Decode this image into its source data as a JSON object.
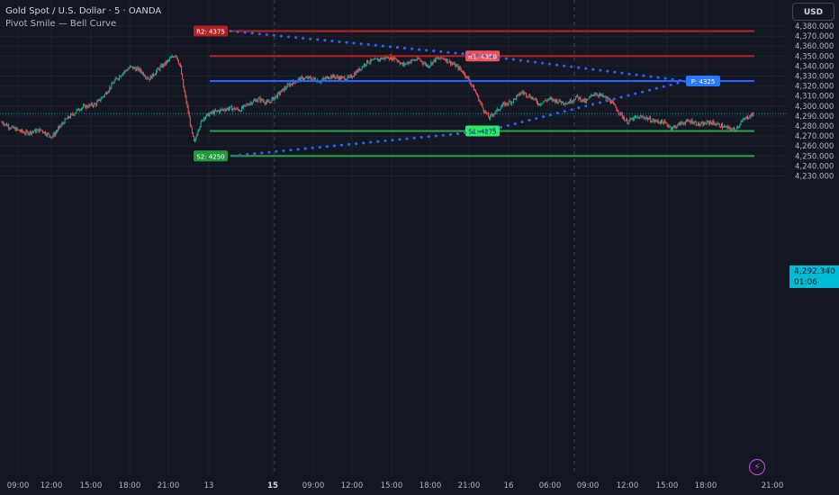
{
  "legend": {
    "title": "Gold Spot / U.S. Dollar · 5 · OANDA",
    "indicator": "Pivot Smile — Bell Curve"
  },
  "currency_button": "USD",
  "last_price": {
    "value": "4,292.340",
    "countdown": "01:06"
  },
  "alert_icon": "lightning-icon",
  "colors": {
    "background": "#131722",
    "up": "#26a69a",
    "down": "#ef5350",
    "resistance_line": "#b22222",
    "pivot_line": "#2962ff",
    "support_line": "#2e9c47",
    "smile_dots": "#2962ff",
    "price_tag": "#00bcd4"
  },
  "chart_data": {
    "type": "candlestick",
    "symbol": "XAUUSD",
    "timeframe": "5",
    "ylim": [
      4222,
      4388
    ],
    "yticks": [
      "4,230.000",
      "4,240.000",
      "4,250.000",
      "4,260.000",
      "4,270.000",
      "4,280.000",
      "4,290.000",
      "4,300.000",
      "4,310.000",
      "4,320.000",
      "4,330.000",
      "4,340.000",
      "4,350.000",
      "4,360.000",
      "4,370.000",
      "4,380.000"
    ],
    "x_ticks": [
      "09:00",
      "12:00",
      "15:00",
      "18:00",
      "21:00",
      "13",
      "15",
      "09:00",
      "12:00",
      "15:00",
      "18:00",
      "21:00",
      "16",
      "06:00",
      "09:00",
      "12:00",
      "15:00",
      "18:00",
      "21:00"
    ],
    "levels": [
      {
        "label": "R2: 4375",
        "value": 4375
      },
      {
        "label": "R1: 4350",
        "value": 4350
      },
      {
        "label": "P: 4325",
        "value": 4325
      },
      {
        "label": "S1: 4275",
        "value": 4275
      },
      {
        "label": "S2: 4250",
        "value": 4250
      }
    ],
    "price_path": [
      [
        0,
        4284
      ],
      [
        0.5,
        4279
      ],
      [
        1.5,
        4273
      ],
      [
        2.5,
        4276
      ],
      [
        3.2,
        4269
      ],
      [
        4,
        4285
      ],
      [
        5,
        4298
      ],
      [
        6,
        4302
      ],
      [
        6.6,
        4312
      ],
      [
        7.2,
        4325
      ],
      [
        7.7,
        4333
      ],
      [
        8.2,
        4339
      ],
      [
        8.8,
        4336
      ],
      [
        9.4,
        4327
      ],
      [
        10,
        4337
      ],
      [
        10.6,
        4345
      ],
      [
        11.1,
        4352
      ],
      [
        11.4,
        4339
      ],
      [
        11.6,
        4318
      ],
      [
        11.9,
        4294
      ],
      [
        12.1,
        4276
      ],
      [
        12.3,
        4262
      ],
      [
        12.5,
        4276
      ],
      [
        12.9,
        4289
      ],
      [
        13.4,
        4293
      ],
      [
        14,
        4296
      ],
      [
        14.6,
        4298
      ],
      [
        15.2,
        4296
      ],
      [
        15.8,
        4303
      ],
      [
        16.4,
        4307
      ],
      [
        17,
        4303
      ],
      [
        17.6,
        4311
      ],
      [
        18.3,
        4321
      ],
      [
        19,
        4327
      ],
      [
        19.7,
        4328
      ],
      [
        20.3,
        4325
      ],
      [
        21,
        4330
      ],
      [
        21.6,
        4328
      ],
      [
        22.2,
        4328
      ],
      [
        22.7,
        4335
      ],
      [
        23.3,
        4344
      ],
      [
        23.9,
        4346
      ],
      [
        24.6,
        4349
      ],
      [
        25.1,
        4348
      ],
      [
        25.6,
        4341
      ],
      [
        26.1,
        4345
      ],
      [
        26.6,
        4347
      ],
      [
        27.2,
        4340
      ],
      [
        27.7,
        4347
      ],
      [
        28.2,
        4348
      ],
      [
        28.7,
        4343
      ],
      [
        29.1,
        4339
      ],
      [
        29.5,
        4333
      ],
      [
        29.9,
        4324
      ],
      [
        30.3,
        4312
      ],
      [
        30.7,
        4298
      ],
      [
        31.1,
        4288
      ],
      [
        31.5,
        4294
      ],
      [
        32,
        4301
      ],
      [
        32.6,
        4305
      ],
      [
        33.2,
        4314
      ],
      [
        33.8,
        4309
      ],
      [
        34.3,
        4302
      ],
      [
        34.9,
        4307
      ],
      [
        35.5,
        4305
      ],
      [
        36.1,
        4303
      ],
      [
        36.7,
        4309
      ],
      [
        37.3,
        4304
      ],
      [
        37.8,
        4313
      ],
      [
        38.3,
        4310
      ],
      [
        38.8,
        4306
      ],
      [
        39.2,
        4298
      ],
      [
        39.5,
        4292
      ],
      [
        39.9,
        4284
      ],
      [
        40.4,
        4288
      ],
      [
        41,
        4289
      ],
      [
        41.6,
        4285
      ],
      [
        42.2,
        4284
      ],
      [
        42.8,
        4278
      ],
      [
        43.4,
        4283
      ],
      [
        44,
        4285
      ],
      [
        44.6,
        4281
      ],
      [
        45.2,
        4284
      ],
      [
        45.8,
        4281
      ],
      [
        46.3,
        4278
      ],
      [
        46.8,
        4276
      ],
      [
        47.2,
        4284
      ],
      [
        47.6,
        4289
      ],
      [
        48,
        4292
      ]
    ]
  }
}
